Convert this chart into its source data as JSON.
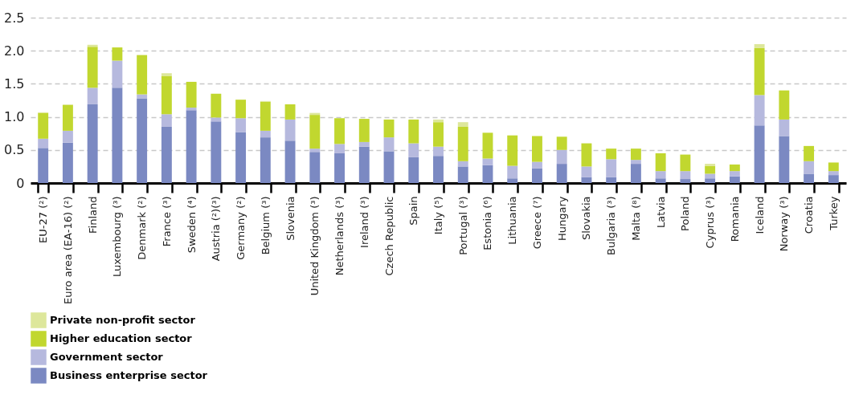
{
  "chart_data": {
    "type": "bar",
    "stacked": true,
    "categories": [
      "EU-27 (²)",
      "Euro area (EA-16) (²)",
      "Finland",
      "Luxembourg (³)",
      "Denmark (²)",
      "France (³)",
      "Sweden (⁴)",
      "Austria (²)(³)",
      "Germany (²)",
      "Belgium (³)",
      "Slovenia",
      "United Kingdom (³)",
      "Netherlands (³)",
      "Ireland (³)",
      "Czech Republic",
      "Spain",
      "Italy (⁵)",
      "Portugal (³)",
      "Estonia (⁶)",
      "Lithuania",
      "Greece (⁷)",
      "Hungary",
      "Slovakia",
      "Bulgaria (³)",
      "Malta (⁸)",
      "Latvia",
      "Poland",
      "Cyprus (³)",
      "Romania",
      "Iceland",
      "Norway (³)",
      "Croatia",
      "Turkey"
    ],
    "series": [
      {
        "name": "Business enterprise sector",
        "color": "#7b89c2",
        "values": [
          0.53,
          0.61,
          1.19,
          1.44,
          1.28,
          0.85,
          1.1,
          0.93,
          0.77,
          0.69,
          0.64,
          0.47,
          0.45,
          0.55,
          0.48,
          0.39,
          0.41,
          0.25,
          0.27,
          0.07,
          0.22,
          0.29,
          0.09,
          0.09,
          0.29,
          0.07,
          0.06,
          0.07,
          0.1,
          0.87,
          0.71,
          0.14,
          0.12
        ]
      },
      {
        "name": "Government sector",
        "color": "#b6b9de",
        "values": [
          0.14,
          0.18,
          0.25,
          0.41,
          0.06,
          0.19,
          0.04,
          0.06,
          0.21,
          0.1,
          0.32,
          0.05,
          0.14,
          0.07,
          0.21,
          0.21,
          0.14,
          0.08,
          0.1,
          0.19,
          0.1,
          0.21,
          0.16,
          0.27,
          0.06,
          0.11,
          0.12,
          0.07,
          0.08,
          0.46,
          0.25,
          0.19,
          0.06
        ]
      },
      {
        "name": "Higher education sector",
        "color": "#c1d72f",
        "values": [
          0.39,
          0.39,
          0.62,
          0.2,
          0.59,
          0.58,
          0.39,
          0.36,
          0.28,
          0.44,
          0.23,
          0.51,
          0.39,
          0.35,
          0.27,
          0.36,
          0.37,
          0.52,
          0.39,
          0.46,
          0.39,
          0.2,
          0.35,
          0.16,
          0.17,
          0.27,
          0.25,
          0.12,
          0.1,
          0.71,
          0.44,
          0.23,
          0.13
        ]
      },
      {
        "name": "Private non-profit sector",
        "color": "#dde79b",
        "values": [
          0.01,
          0.01,
          0.03,
          null,
          0.01,
          0.04,
          null,
          null,
          null,
          0.01,
          null,
          0.03,
          null,
          null,
          null,
          null,
          0.04,
          0.07,
          null,
          null,
          null,
          null,
          null,
          null,
          null,
          null,
          null,
          0.03,
          null,
          0.06,
          null,
          null,
          null
        ]
      }
    ],
    "ylim": [
      0,
      2.5
    ],
    "yticks": [
      0,
      {
        "value": 0.5,
        "label": "0.5"
      },
      {
        "value": 1,
        "label": "1.0"
      },
      {
        "value": 1.5,
        "label": "1.5"
      },
      {
        "value": 2,
        "label": "2.0"
      },
      {
        "value": 2.5,
        "label": "2.5"
      }
    ],
    "grid": "y",
    "legend": "bottom"
  }
}
